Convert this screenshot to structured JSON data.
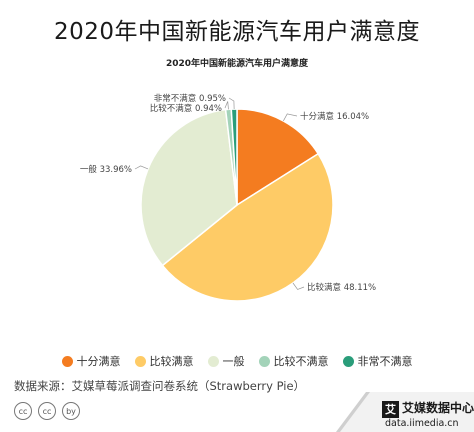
{
  "header": {
    "title": "2020年中国新能源汽车用户满意度"
  },
  "chart_data": {
    "type": "pie",
    "title": "2020年中国新能源汽车用户满意度",
    "slices": [
      {
        "name": "十分满意",
        "value": 16.04,
        "label": "十分满意 16.04%",
        "color": "#f47c20"
      },
      {
        "name": "比较满意",
        "value": 48.11,
        "label": "比较满意 48.11%",
        "color": "#fecb66"
      },
      {
        "name": "一般",
        "value": 33.96,
        "label": "一般 33.96%",
        "color": "#e3ecd2"
      },
      {
        "name": "比较不满意",
        "value": 0.94,
        "label": "比较不满意 0.94%",
        "color": "#a3d3b9"
      },
      {
        "name": "非常不满意",
        "value": 0.95,
        "label": "非常不满意 0.95%",
        "color": "#2a9d7a"
      }
    ],
    "legend_position": "bottom"
  },
  "footer": {
    "source": "数据来源：艾媒草莓派调查问卷系统（Strawberry Pie）",
    "cc_icons": [
      "cc",
      "cc",
      "by"
    ],
    "brand_logo": "艾",
    "brand_name": "艾媒数据中心",
    "brand_url": "data.iimedia.cn"
  }
}
